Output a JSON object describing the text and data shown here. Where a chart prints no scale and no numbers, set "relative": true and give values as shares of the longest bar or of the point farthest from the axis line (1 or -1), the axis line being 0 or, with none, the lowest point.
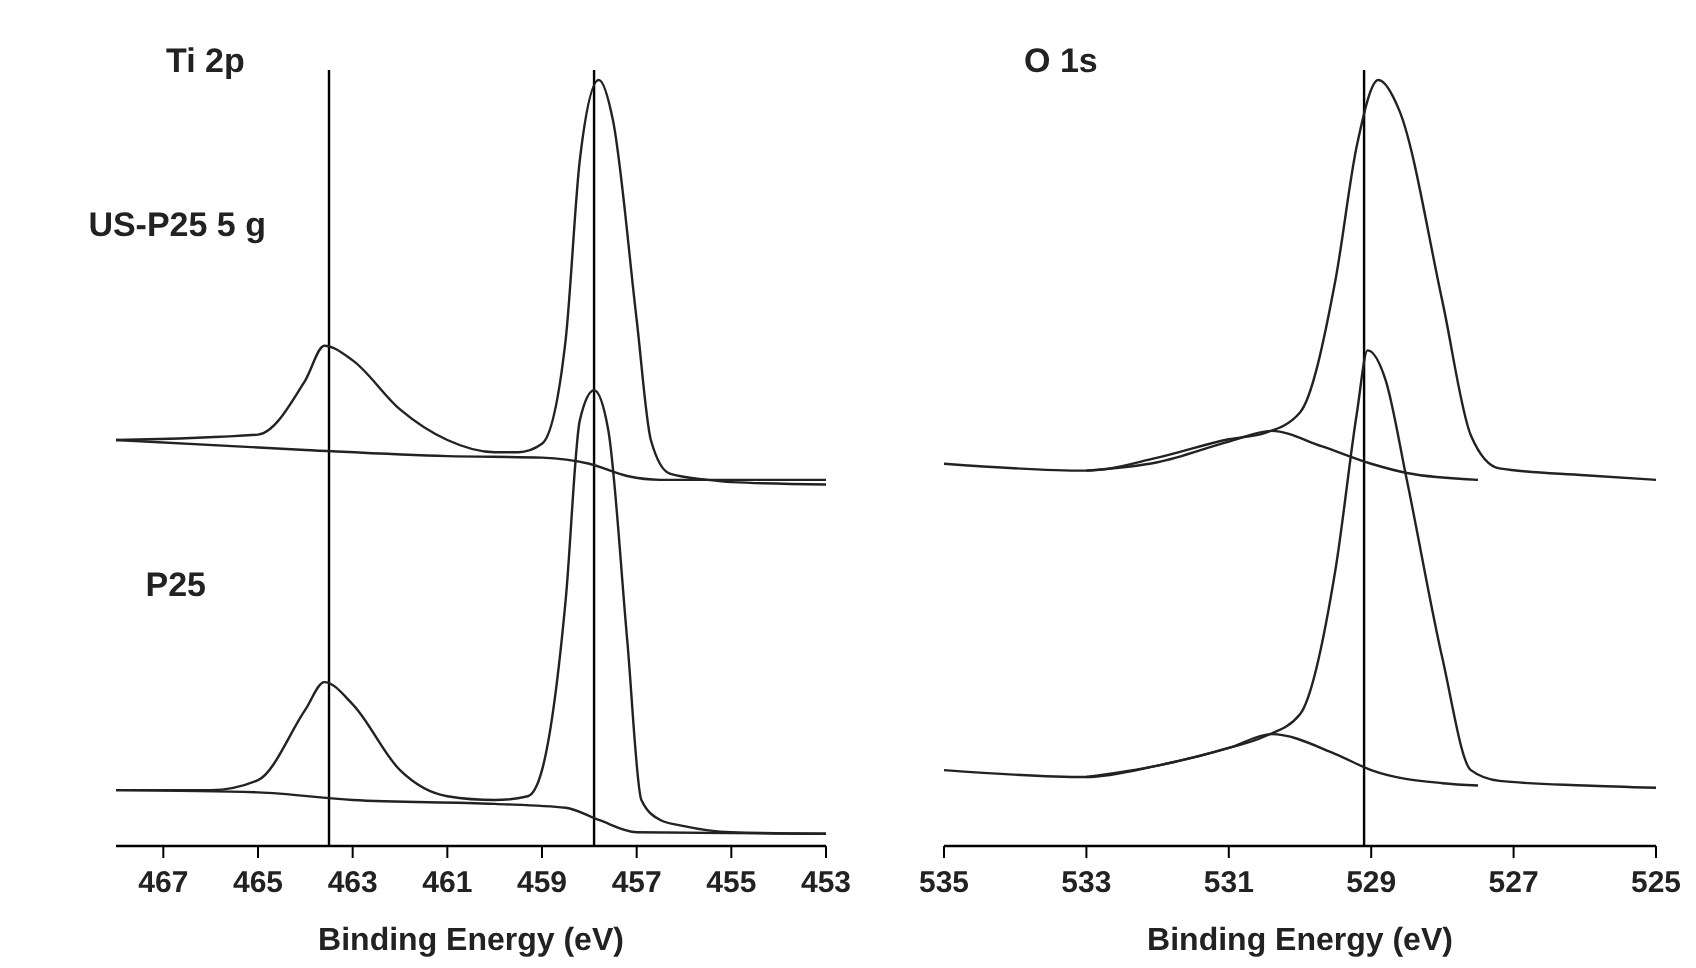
{
  "chart_data": [
    {
      "type": "line",
      "title": "Ti 2p",
      "xlabel": "Binding Energy (eV)",
      "annotations": [
        "US-P25 5 g",
        "P25"
      ],
      "relative": true,
      "xlim": [
        468,
        453
      ],
      "xticks": [
        467,
        465,
        463,
        461,
        459,
        457,
        455,
        453
      ],
      "marker": "none",
      "line_style": "solid",
      "ref_lines": [
        {
          "axis": "x",
          "value": 463.5,
          "color": "#000000"
        },
        {
          "axis": "x",
          "value": 457.9,
          "color": "#000000"
        }
      ],
      "series": [
        {
          "color": "#222222",
          "x": [
            468,
            465,
            464,
            463.6,
            463,
            462,
            461,
            460,
            459.5,
            459,
            458.5,
            458.2,
            457.8,
            457.5,
            457,
            456.7,
            456.3,
            455.5,
            455,
            453
          ],
          "values": [
            0.53,
            0.537,
            0.608,
            0.653,
            0.634,
            0.57,
            0.53,
            0.514,
            0.514,
            0.525,
            0.661,
            0.896,
            1,
            0.947,
            0.687,
            0.53,
            0.486,
            0.478,
            0.475,
            0.472
          ]
        },
        {
          "color": "#222222",
          "x": [
            468,
            464,
            461,
            459,
            458,
            457.2,
            456.5,
            453
          ],
          "values": [
            0.53,
            0.517,
            0.509,
            0.507,
            0.499,
            0.483,
            0.478,
            0.478
          ]
        },
        {
          "color": "#222222",
          "x": [
            468,
            466,
            465,
            464,
            463.6,
            463,
            462,
            461,
            460,
            459.3,
            459,
            458.5,
            458.2,
            457.9,
            457.6,
            457.2,
            456.9,
            456.5,
            456,
            455,
            453
          ],
          "values": [
            0.073,
            0.073,
            0.086,
            0.178,
            0.214,
            0.185,
            0.099,
            0.065,
            0.06,
            0.065,
            0.099,
            0.321,
            0.556,
            0.595,
            0.543,
            0.269,
            0.06,
            0.034,
            0.026,
            0.018,
            0.016
          ]
        },
        {
          "color": "#222222",
          "x": [
            468,
            465,
            463,
            460,
            458.5,
            457.8,
            457,
            453
          ],
          "values": [
            0.073,
            0.07,
            0.06,
            0.055,
            0.05,
            0.034,
            0.018,
            0.016
          ]
        }
      ]
    },
    {
      "type": "line",
      "title": "O 1s",
      "xlabel": "Binding Energy (eV)",
      "relative": true,
      "xlim": [
        535,
        525
      ],
      "xticks": [
        535,
        533,
        531,
        529,
        527,
        525
      ],
      "marker": "none",
      "line_style": "solid",
      "ref_lines": [
        {
          "axis": "x",
          "value": 529.1,
          "color": "#000000"
        }
      ],
      "series": [
        {
          "color": "#222222",
          "x": [
            535,
            533,
            532,
            531,
            530.5,
            530,
            529.5,
            529.2,
            528.9,
            528.6,
            528,
            527.6,
            527.2,
            526,
            525
          ],
          "values": [
            0.499,
            0.49,
            0.507,
            0.531,
            0.539,
            0.566,
            0.74,
            0.915,
            1,
            0.959,
            0.711,
            0.536,
            0.493,
            0.484,
            0.478
          ]
        },
        {
          "color": "#222222",
          "x": [
            533,
            532,
            531,
            530.4,
            529.7,
            529,
            528.5,
            527.5
          ],
          "values": [
            0.49,
            0.501,
            0.528,
            0.542,
            0.522,
            0.499,
            0.487,
            0.478
          ]
        },
        {
          "color": "#222222",
          "x": [
            535,
            533,
            532,
            531,
            530.5,
            530,
            529.5,
            529.2,
            529.05,
            528.8,
            528.5,
            528,
            527.6,
            527.2,
            526,
            525
          ],
          "values": [
            0.099,
            0.09,
            0.105,
            0.128,
            0.143,
            0.172,
            0.362,
            0.566,
            0.647,
            0.609,
            0.478,
            0.245,
            0.099,
            0.085,
            0.079,
            0.076
          ]
        },
        {
          "color": "#222222",
          "x": [
            533,
            532,
            531,
            530.4,
            529.5,
            529,
            528,
            527.5
          ],
          "values": [
            0.09,
            0.105,
            0.128,
            0.146,
            0.12,
            0.099,
            0.082,
            0.079
          ]
        }
      ]
    }
  ]
}
